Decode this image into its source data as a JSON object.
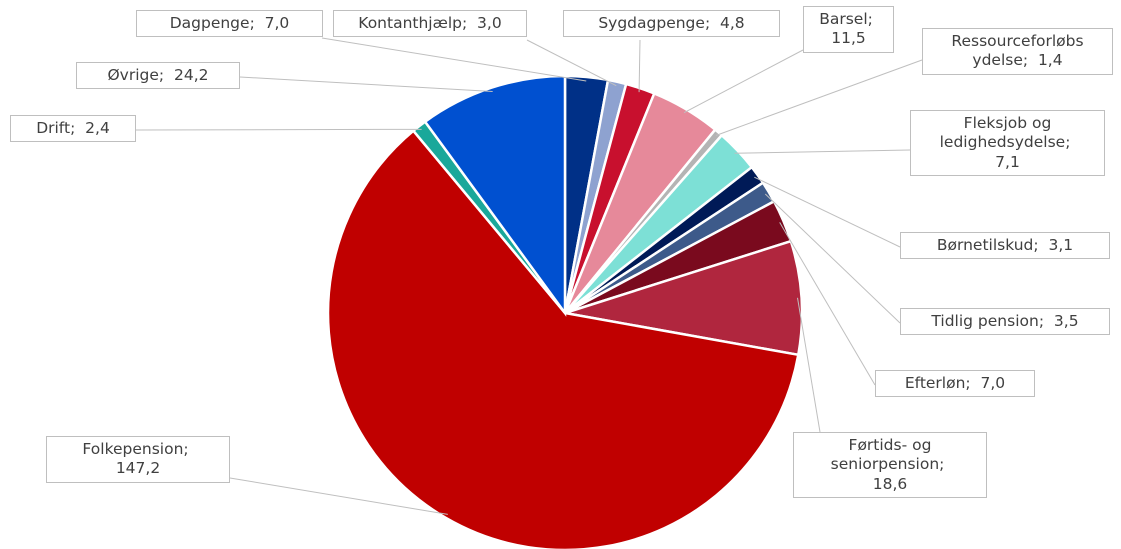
{
  "chart_data": {
    "type": "pie",
    "categories": [
      "Dagpenge",
      "Kontanthjælp",
      "Sygdagpenge",
      "Barsel",
      "Ressourceforløbs ydelse",
      "Fleksjob og ledighedsydelse",
      "Børnetilskud",
      "Tidlig pension",
      "Efterløn",
      "Førtids- og seniorpension",
      "Folkepension",
      "Drift",
      "Øvrige"
    ],
    "values": [
      7.0,
      3.0,
      4.8,
      11.5,
      1.4,
      7.1,
      3.1,
      3.5,
      7.0,
      18.6,
      147.2,
      2.4,
      24.2
    ],
    "value_labels": [
      "7,0",
      "3,0",
      "4,8",
      "11,5",
      "1,4",
      "7,1",
      "3,1",
      "3,5",
      "7,0",
      "18,6",
      "147,2",
      "2,4",
      "24,2"
    ],
    "colors": [
      "#003087",
      "#8ea2d0",
      "#c8102e",
      "#e6899a",
      "#b4b4b4",
      "#7de0d6",
      "#001a57",
      "#3d5a8a",
      "#7a0a1e",
      "#b0263e",
      "#c00000",
      "#1aa89a",
      "#0050d0"
    ]
  }
}
